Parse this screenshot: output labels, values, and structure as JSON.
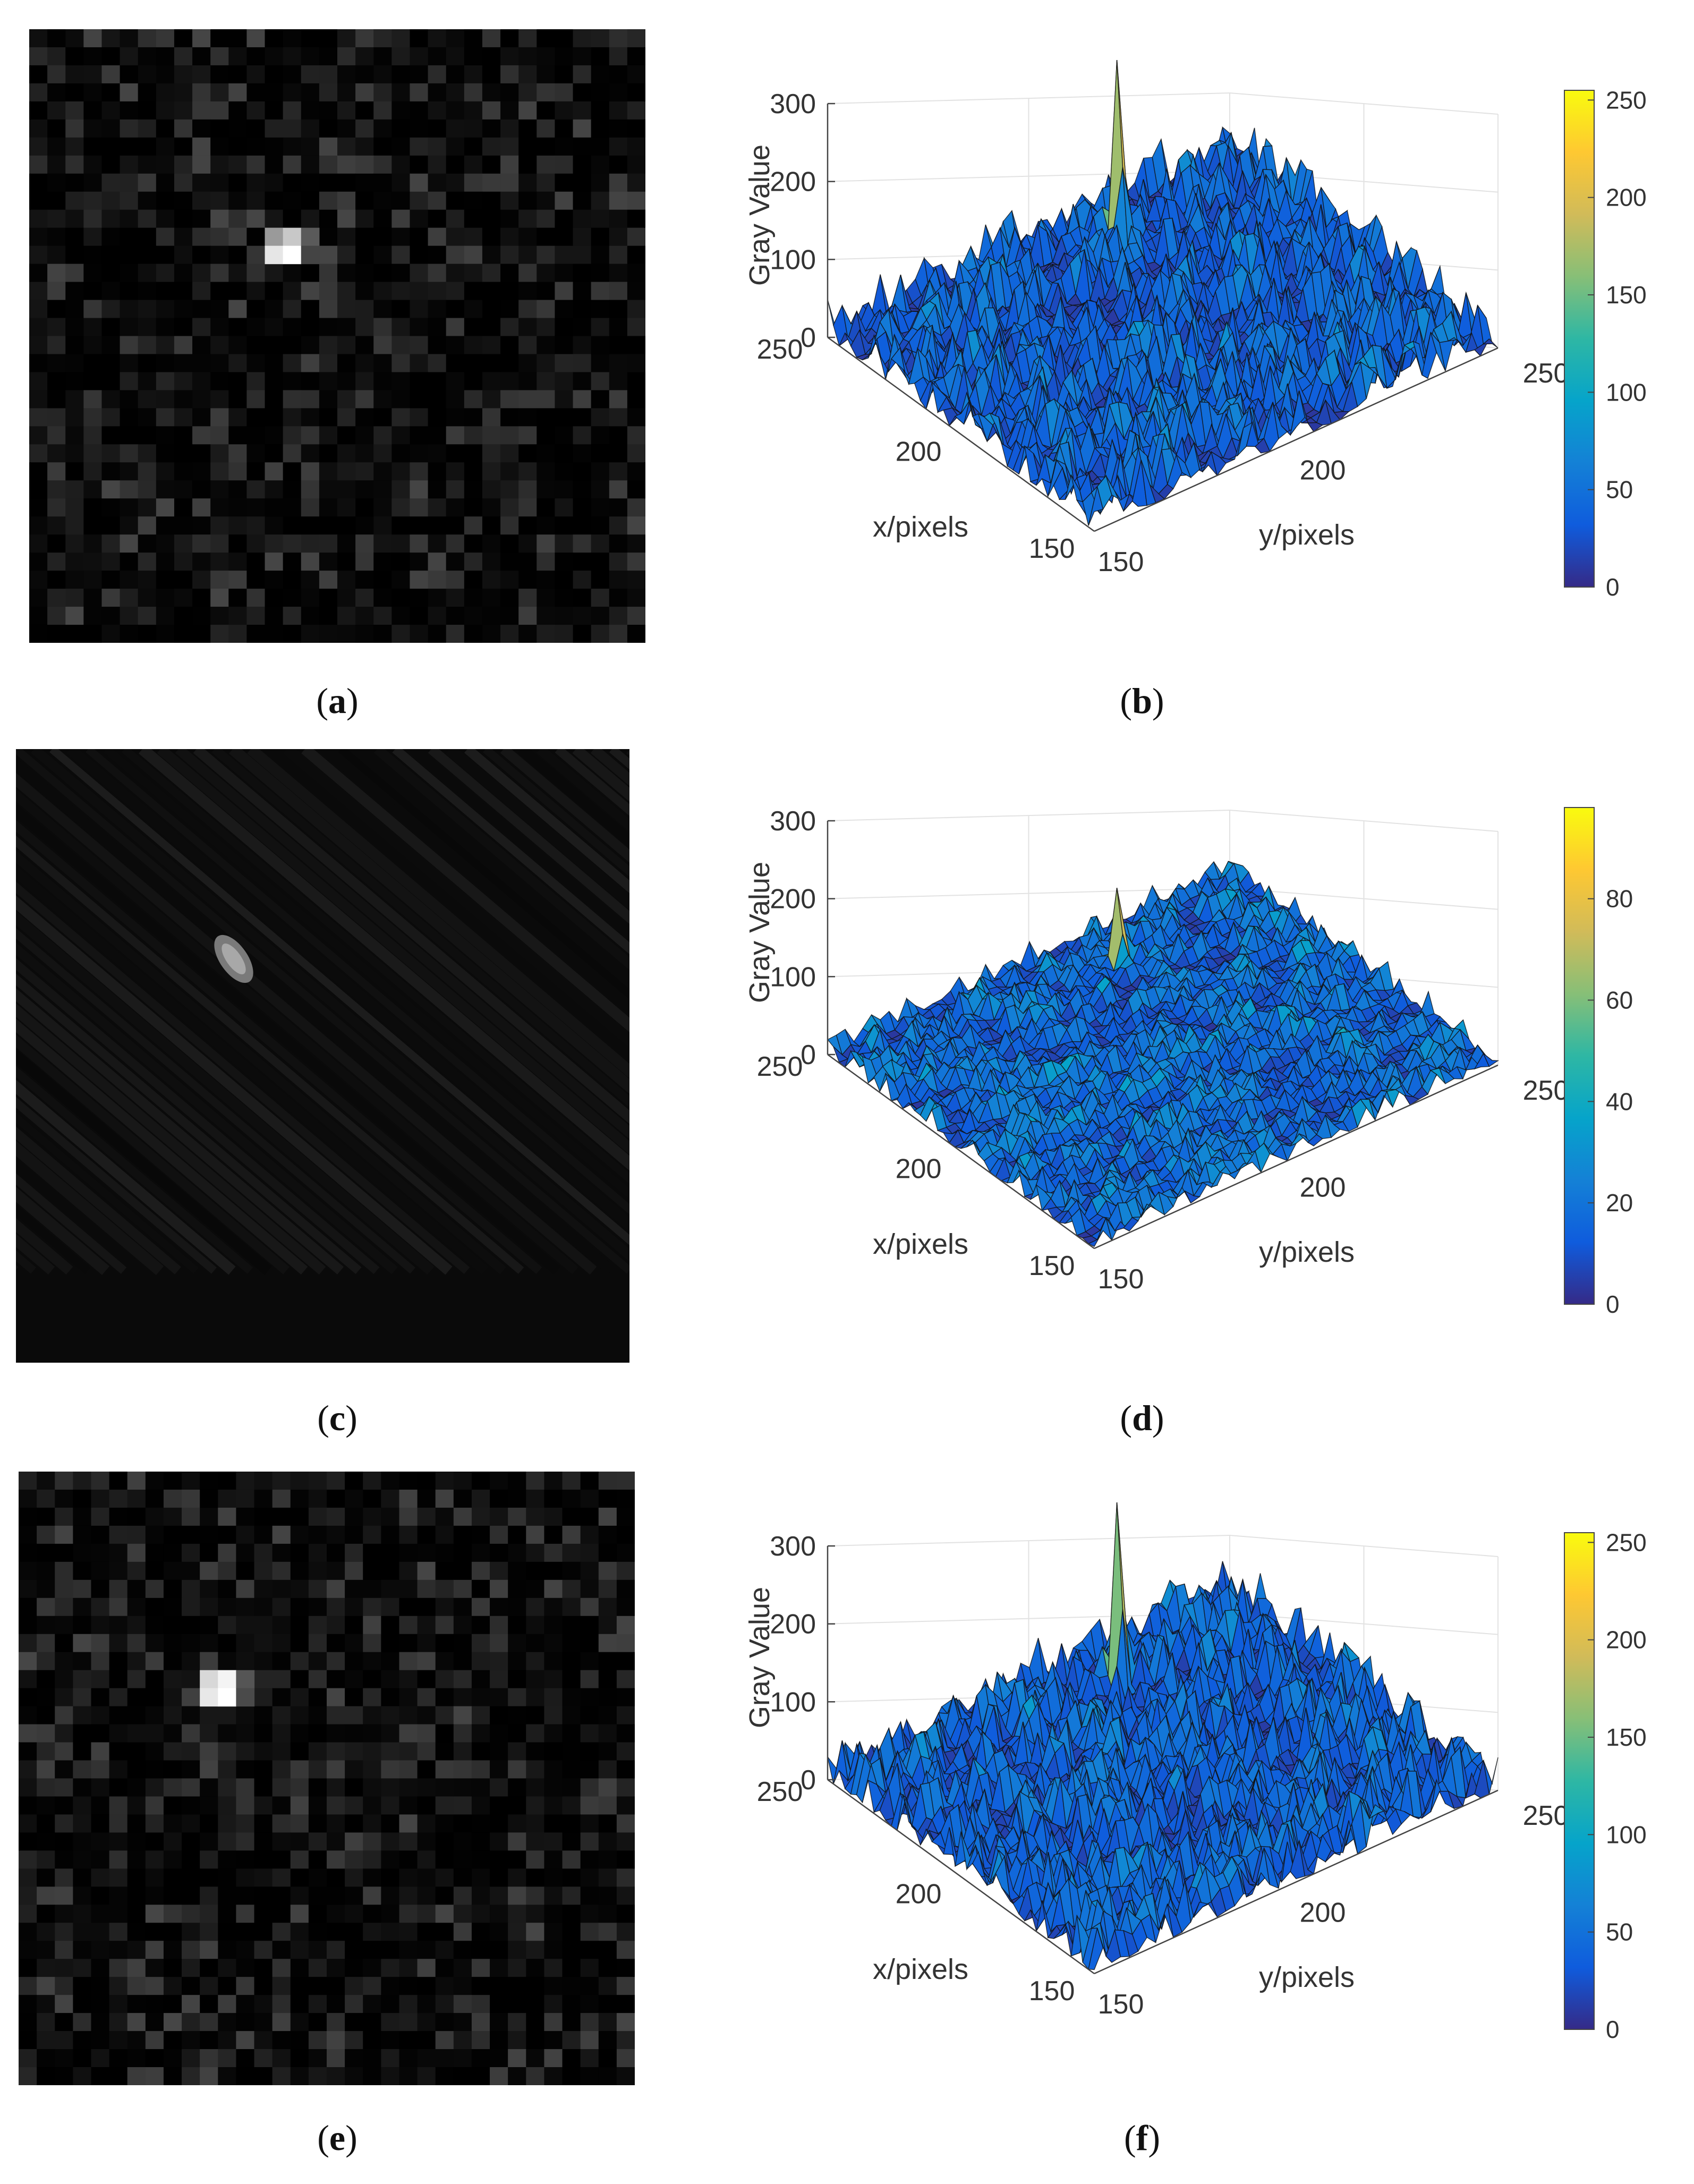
{
  "panels": [
    {
      "id": "a",
      "caption": "a"
    },
    {
      "id": "b",
      "caption": "b"
    },
    {
      "id": "c",
      "caption": "c"
    },
    {
      "id": "d",
      "caption": "d"
    },
    {
      "id": "e",
      "caption": "e"
    },
    {
      "id": "f",
      "caption": "f"
    }
  ],
  "chart_data": [
    {
      "type": "surface3d",
      "panel": "b",
      "zlabel": "Gray Value",
      "xlabel": "x/pixels",
      "ylabel": "y/pixels",
      "z_ticks": [
        "0",
        "100",
        "200",
        "300"
      ],
      "x_ticks": [
        "250",
        "200",
        "150"
      ],
      "y_ticks": [
        "150",
        "200",
        "250"
      ],
      "zlim": [
        0,
        300
      ],
      "xlim": [
        150,
        250
      ],
      "ylim": [
        150,
        250
      ],
      "peak_value": 240,
      "noise_level": 60,
      "colorbar_ticks": [
        "0",
        "50",
        "100",
        "150",
        "200",
        "250"
      ],
      "colorbar_max": 255,
      "grid": true
    },
    {
      "type": "surface3d",
      "panel": "d",
      "zlabel": "Gray Value",
      "xlabel": "x/pixels",
      "ylabel": "y/pixels",
      "z_ticks": [
        "0",
        "100",
        "200",
        "300"
      ],
      "x_ticks": [
        "250",
        "200",
        "150"
      ],
      "y_ticks": [
        "150",
        "200",
        "250"
      ],
      "zlim": [
        0,
        300
      ],
      "xlim": [
        150,
        250
      ],
      "ylim": [
        150,
        250
      ],
      "peak_value": 98,
      "noise_level": 30,
      "colorbar_ticks": [
        "0",
        "20",
        "40",
        "60",
        "80"
      ],
      "colorbar_max": 98,
      "grid": true
    },
    {
      "type": "surface3d",
      "panel": "f",
      "zlabel": "Gray Value",
      "xlabel": "x/pixels",
      "ylabel": "y/pixels",
      "z_ticks": [
        "0",
        "100",
        "200",
        "300"
      ],
      "x_ticks": [
        "250",
        "200",
        "150"
      ],
      "y_ticks": [
        "150",
        "200",
        "250"
      ],
      "zlim": [
        0,
        300
      ],
      "xlim": [
        150,
        250
      ],
      "ylim": [
        150,
        250
      ],
      "peak_value": 240,
      "noise_level": 60,
      "colorbar_ticks": [
        "0",
        "50",
        "100",
        "150",
        "200",
        "250"
      ],
      "colorbar_max": 255,
      "grid": true
    }
  ],
  "colors": {
    "parula_low": "#352a87",
    "parula_mid": "#0fae99",
    "parula_high": "#f9fb0e",
    "surface": "#2b2b6b"
  }
}
